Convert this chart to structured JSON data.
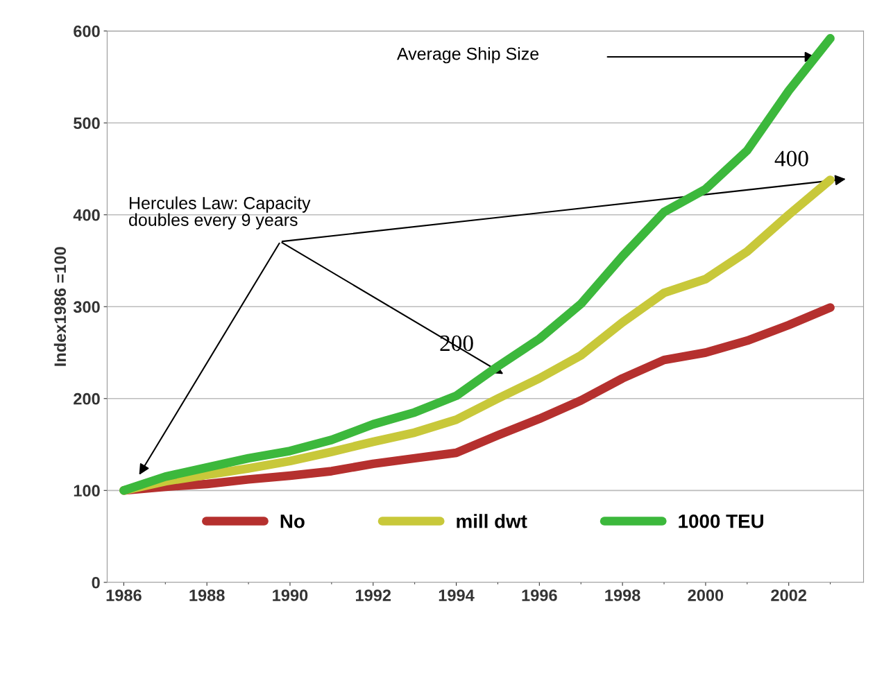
{
  "chart_data": {
    "type": "line",
    "ylabel": "Index1986 =100",
    "x": [
      1986,
      1987,
      1988,
      1989,
      1990,
      1991,
      1992,
      1993,
      1994,
      1995,
      1996,
      1997,
      1998,
      1999,
      2000,
      2001,
      2002,
      2003
    ],
    "series": [
      {
        "name": "No",
        "color": "#b5302e",
        "values": [
          100,
          104,
          107,
          112,
          116,
          121,
          129,
          135,
          141,
          160,
          178,
          198,
          222,
          242,
          250,
          263,
          280,
          299
        ]
      },
      {
        "name": "mill dwt",
        "color": "#c8c83a",
        "values": [
          100,
          110,
          117,
          124,
          132,
          142,
          153,
          163,
          177,
          200,
          222,
          247,
          283,
          315,
          330,
          360,
          400,
          438
        ]
      },
      {
        "name": "1000 TEU",
        "color": "#3cb83c",
        "values": [
          100,
          115,
          125,
          135,
          143,
          155,
          172,
          185,
          203,
          235,
          265,
          303,
          355,
          403,
          428,
          470,
          535,
          592
        ]
      }
    ],
    "xlim": [
      1985.6,
      2003.8
    ],
    "xticks": [
      1986,
      1988,
      1990,
      1992,
      1994,
      1996,
      1998,
      2000,
      2002
    ],
    "ylim": [
      0,
      600
    ],
    "yticks": [
      0,
      100,
      200,
      300,
      400,
      500,
      600
    ],
    "grid": "y",
    "legend": "bottom",
    "line_style": "solid",
    "annotations": [
      "Average Ship Size",
      "Hercules Law: Capacity\ndoubles every 9 years",
      "200",
      "400"
    ]
  }
}
